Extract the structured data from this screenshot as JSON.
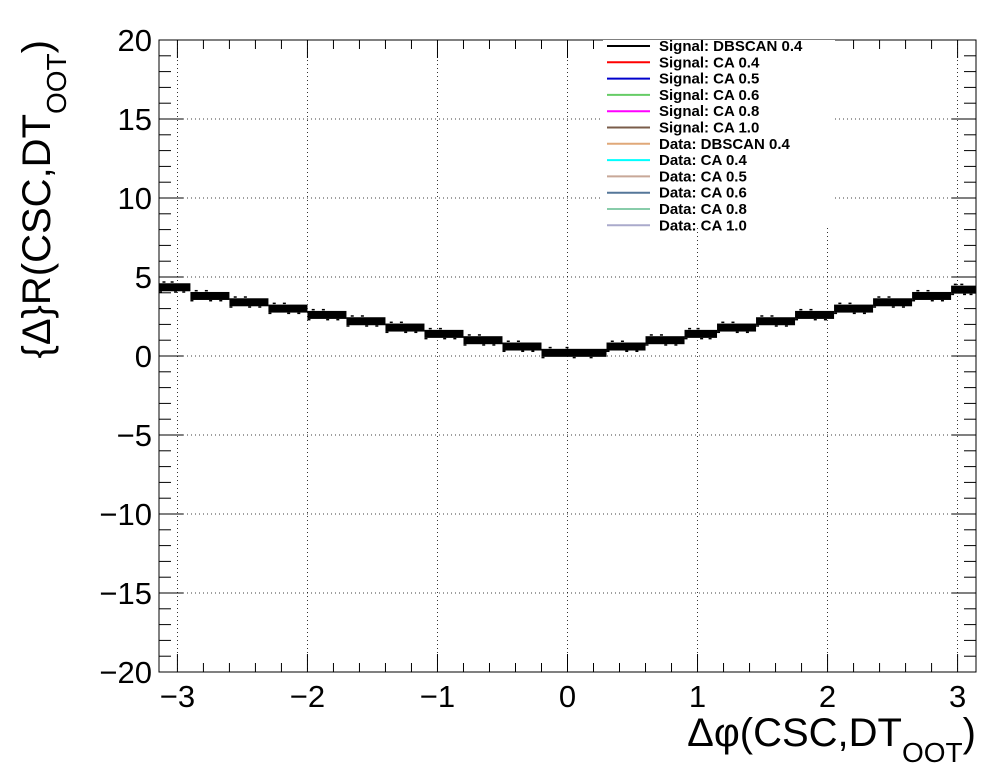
{
  "chart_data": {
    "type": "scatter",
    "title": "",
    "xlabel": {
      "main": "Δφ(CSC,DT",
      "sub": "OOT",
      "close": ")"
    },
    "ylabel": {
      "main": "{Δ}R(CSC,DT",
      "sub": "OOT",
      "close": ")"
    },
    "xlim": [
      -3.1416,
      3.1416
    ],
    "ylim": [
      -20,
      20
    ],
    "xticks": [
      {
        "value": -3,
        "label": "−3"
      },
      {
        "value": -2,
        "label": "−2"
      },
      {
        "value": -1,
        "label": "−1"
      },
      {
        "value": 0,
        "label": "0"
      },
      {
        "value": 1,
        "label": "1"
      },
      {
        "value": 2,
        "label": "2"
      },
      {
        "value": 3,
        "label": "3"
      }
    ],
    "yticks": [
      {
        "value": -20,
        "label": "−20"
      },
      {
        "value": -15,
        "label": "−15"
      },
      {
        "value": -10,
        "label": "−10"
      },
      {
        "value": -5,
        "label": "−5"
      },
      {
        "value": 0,
        "label": "0"
      },
      {
        "value": 5,
        "label": "5"
      },
      {
        "value": 10,
        "label": "10"
      },
      {
        "value": 15,
        "label": "15"
      },
      {
        "value": 20,
        "label": "20"
      }
    ],
    "grid": true,
    "legend_position": "top-right",
    "series": [
      {
        "name": "Signal: DBSCAN 0.4",
        "color": "#000000",
        "values": [
          [
            -3.05,
            4.35
          ],
          [
            -2.75,
            3.8
          ],
          [
            -2.45,
            3.4
          ],
          [
            -2.15,
            3.0
          ],
          [
            -1.85,
            2.6
          ],
          [
            -1.55,
            2.2
          ],
          [
            -1.25,
            1.8
          ],
          [
            -0.95,
            1.4
          ],
          [
            -0.65,
            1.0
          ],
          [
            -0.35,
            0.6
          ],
          [
            -0.1,
            0.2
          ],
          [
            0.1,
            0.2
          ],
          [
            0.35,
            0.6
          ],
          [
            0.65,
            1.0
          ],
          [
            0.95,
            1.4
          ],
          [
            1.25,
            1.8
          ],
          [
            1.55,
            2.2
          ],
          [
            1.85,
            2.6
          ],
          [
            2.15,
            3.0
          ],
          [
            2.45,
            3.4
          ],
          [
            2.75,
            3.8
          ],
          [
            3.05,
            4.2
          ]
        ]
      },
      {
        "name": "Signal: CA 0.4",
        "color": "#ff0000",
        "values": []
      },
      {
        "name": "Signal: CA 0.5",
        "color": "#0000cc",
        "values": []
      },
      {
        "name": "Signal: CA 0.6",
        "color": "#66cc66",
        "values": []
      },
      {
        "name": "Signal: CA 0.8",
        "color": "#ff00ff",
        "values": []
      },
      {
        "name": "Signal: CA 1.0",
        "color": "#7a5c4a",
        "values": []
      },
      {
        "name": "Data: DBSCAN 0.4",
        "color": "#e0a878",
        "values": []
      },
      {
        "name": "Data: CA 0.4",
        "color": "#00ffff",
        "values": []
      },
      {
        "name": "Data: CA 0.5",
        "color": "#c8a898",
        "values": []
      },
      {
        "name": "Data: CA 0.6",
        "color": "#557799",
        "values": []
      },
      {
        "name": "Data: CA 0.8",
        "color": "#88ccaa",
        "values": []
      },
      {
        "name": "Data: CA 1.0",
        "color": "#aaaacc",
        "values": []
      }
    ],
    "band_rows": [
      {
        "x": [
          -3.1416,
          -2.9
        ],
        "y": 4.35
      },
      {
        "x": [
          -2.9,
          -2.6
        ],
        "y": 3.8
      },
      {
        "x": [
          -2.6,
          -2.3
        ],
        "y": 3.4
      },
      {
        "x": [
          -2.3,
          -2.0
        ],
        "y": 3.0
      },
      {
        "x": [
          -2.0,
          -1.7
        ],
        "y": 2.6
      },
      {
        "x": [
          -1.7,
          -1.4
        ],
        "y": 2.2
      },
      {
        "x": [
          -1.4,
          -1.1
        ],
        "y": 1.8
      },
      {
        "x": [
          -1.1,
          -0.8
        ],
        "y": 1.4
      },
      {
        "x": [
          -0.8,
          -0.5
        ],
        "y": 1.0
      },
      {
        "x": [
          -0.5,
          -0.2
        ],
        "y": 0.6
      },
      {
        "x": [
          -0.2,
          0.3
        ],
        "y": 0.2
      },
      {
        "x": [
          0.3,
          0.6
        ],
        "y": 0.6
      },
      {
        "x": [
          0.6,
          0.9
        ],
        "y": 1.0
      },
      {
        "x": [
          0.9,
          1.15
        ],
        "y": 1.4
      },
      {
        "x": [
          1.15,
          1.45
        ],
        "y": 1.8
      },
      {
        "x": [
          1.45,
          1.75
        ],
        "y": 2.2
      },
      {
        "x": [
          1.75,
          2.05
        ],
        "y": 2.6
      },
      {
        "x": [
          2.05,
          2.35
        ],
        "y": 3.0
      },
      {
        "x": [
          2.35,
          2.65
        ],
        "y": 3.4
      },
      {
        "x": [
          2.65,
          2.95
        ],
        "y": 3.8
      },
      {
        "x": [
          2.95,
          3.1416
        ],
        "y": 4.2
      }
    ]
  }
}
